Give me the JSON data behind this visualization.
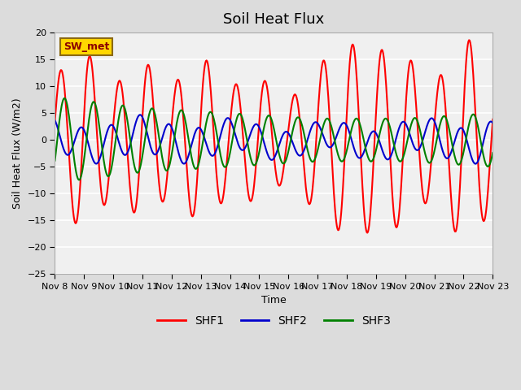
{
  "title": "Soil Heat Flux",
  "xlabel": "Time",
  "ylabel": "Soil Heat Flux (W/m2)",
  "ylim": [
    -25,
    20
  ],
  "yticks": [
    -25,
    -20,
    -15,
    -10,
    -5,
    0,
    5,
    10,
    15,
    20
  ],
  "x_labels": [
    "Nov 8",
    "Nov 9",
    "Nov 10",
    "Nov 11",
    "Nov 12",
    "Nov 13",
    "Nov 14",
    "Nov 15",
    "Nov 16",
    "Nov 17",
    "Nov 18",
    "Nov 19",
    "Nov 20",
    "Nov 21",
    "Nov 22",
    "Nov 23"
  ],
  "annotation_text": "SW_met",
  "annotation_color": "#8B0000",
  "annotation_bg": "#FFD700",
  "line_colors": {
    "SHF1": "#FF0000",
    "SHF2": "#0000CD",
    "SHF3": "#008000"
  },
  "line_width": 1.5,
  "fig_bg": "#DCDCDC",
  "plot_bg": "#F0F0F0",
  "title_fontsize": 13,
  "axis_label_fontsize": 9,
  "tick_fontsize": 8,
  "legend_fontsize": 10,
  "n_days": 15,
  "points_per_day": 48
}
